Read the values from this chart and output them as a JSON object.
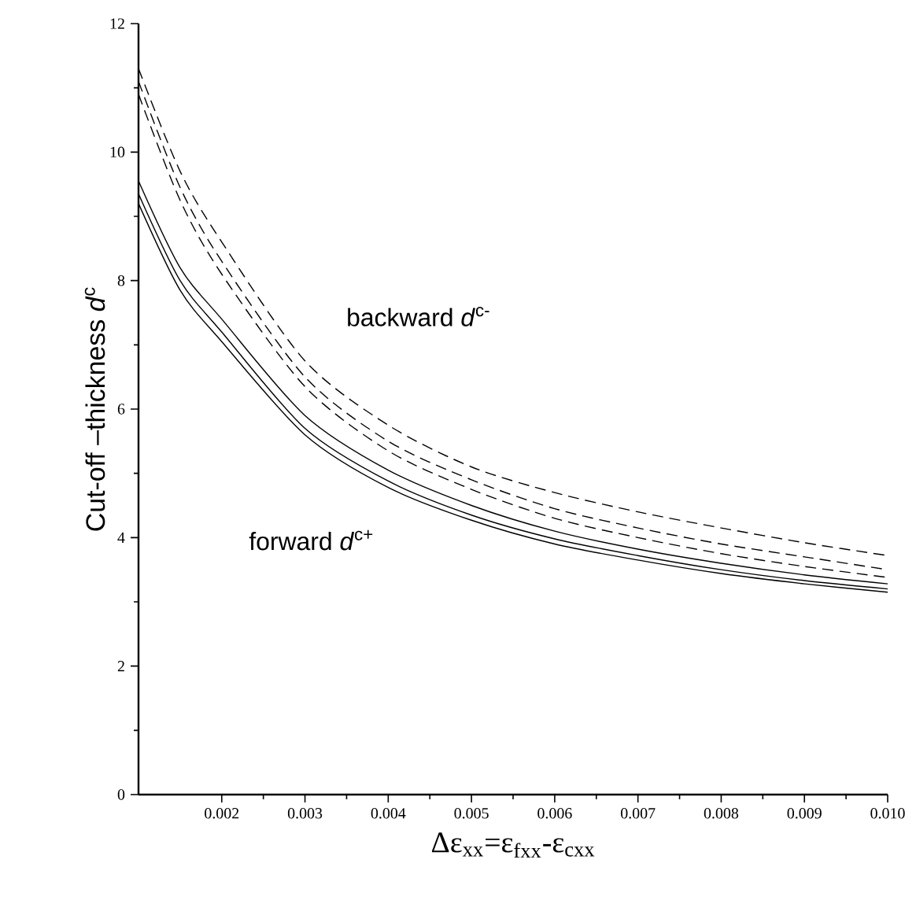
{
  "chart_data": {
    "type": "line",
    "xlabel": "Δε$_{xx}$=ε$_{fxx}$-ε$_{cxx}$",
    "ylabel": "Cut-off –thickness *d*$^{c}$",
    "x": [
      0.001,
      0.0015,
      0.002,
      0.003,
      0.004,
      0.005,
      0.006,
      0.007,
      0.008,
      0.009,
      0.01
    ],
    "series": [
      {
        "color": "#000000",
        "line_style": "dashed",
        "values": [
          11.3,
          9.7,
          8.6,
          6.75,
          5.75,
          5.1,
          4.7,
          4.4,
          4.15,
          3.92,
          3.72
        ]
      },
      {
        "color": "#000000",
        "line_style": "dashed",
        "values": [
          11.1,
          9.45,
          8.3,
          6.5,
          5.5,
          4.9,
          4.45,
          4.15,
          3.9,
          3.7,
          3.5
        ]
      },
      {
        "color": "#000000",
        "line_style": "dashed",
        "values": [
          10.9,
          9.25,
          8.1,
          6.35,
          5.35,
          4.75,
          4.3,
          4.0,
          3.75,
          3.55,
          3.38
        ]
      },
      {
        "color": "#000000",
        "line_style": "solid",
        "values": [
          9.55,
          8.2,
          7.4,
          5.9,
          5.05,
          4.5,
          4.1,
          3.82,
          3.6,
          3.42,
          3.28
        ]
      },
      {
        "color": "#000000",
        "line_style": "solid",
        "values": [
          9.35,
          8.0,
          7.2,
          5.7,
          4.88,
          4.35,
          3.98,
          3.72,
          3.5,
          3.33,
          3.2
        ]
      },
      {
        "color": "#000000",
        "line_style": "solid",
        "values": [
          9.2,
          7.85,
          7.05,
          5.6,
          4.78,
          4.27,
          3.9,
          3.65,
          3.44,
          3.28,
          3.15
        ]
      }
    ],
    "xlim": [
      0.001,
      0.01
    ],
    "ylim": [
      0,
      12
    ],
    "xticks": [
      0.002,
      0.003,
      0.004,
      0.005,
      0.006,
      0.007,
      0.008,
      0.009,
      {
        "value": 0.01,
        "label": "0.010"
      }
    ],
    "yticks": [
      0,
      2,
      4,
      6,
      8,
      10,
      12
    ],
    "grid": false,
    "marker": "none",
    "annotations": [
      "backward *d*$^{c-}$",
      "forward *d*$^{c+}$"
    ]
  }
}
